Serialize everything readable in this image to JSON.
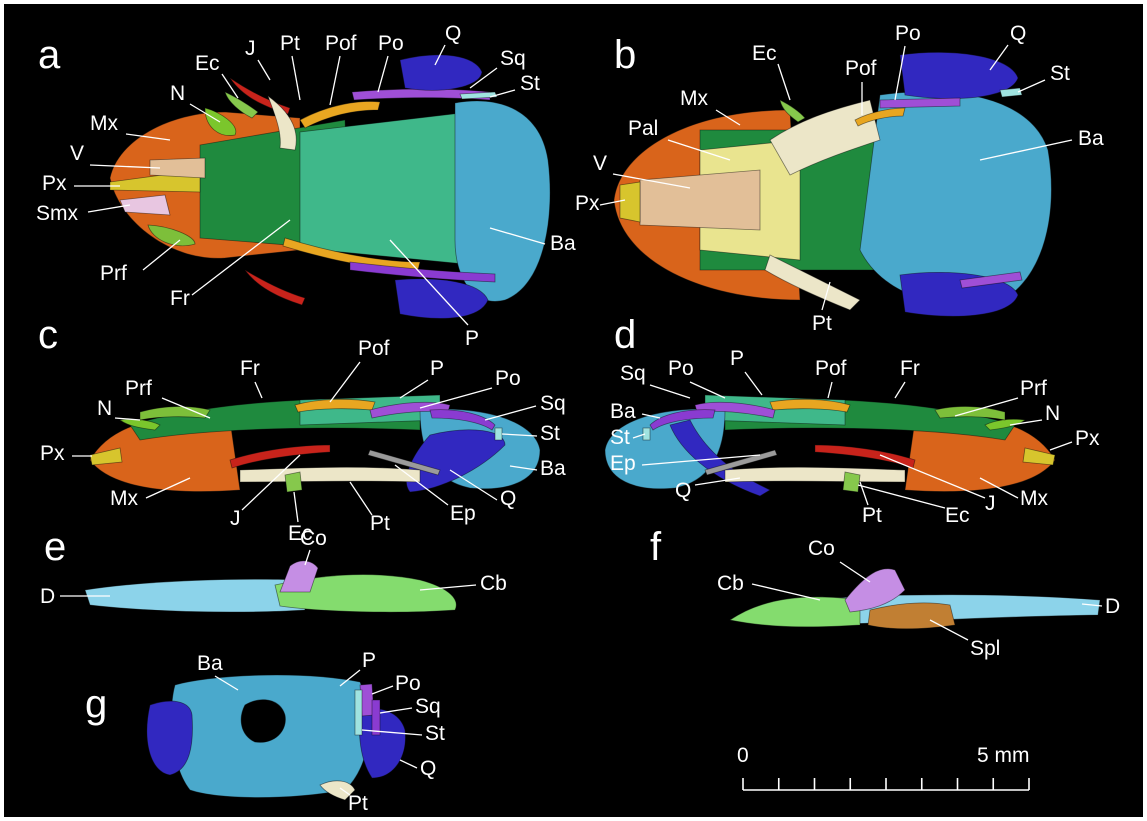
{
  "colors": {
    "background": "#000000",
    "text": "#ffffff",
    "Mx": "#d9641b",
    "Px": "#d7c52d",
    "V": "#e2bf98",
    "Smx": "#e8c6e1",
    "N": "#7bc62c",
    "Prf": "#7dbf3a",
    "Fr": "#1f8a3e",
    "Ec": "#86c84c",
    "J": "#c8231b",
    "Pt": "#ece6c8",
    "Pof": "#e8a621",
    "Po": "#9f4fd6",
    "Sq": "#8a3bd1",
    "St": "#9fe3e0",
    "P": "#3fb88a",
    "Q": "#3128c0",
    "Ba": "#4aa9cc",
    "Ep": "#9b9b9b",
    "Pal": "#e9e48f",
    "D": "#8cd3ea",
    "Cb": "#84dc6e",
    "Co": "#c58ee4",
    "Spl": "#c17f33"
  },
  "panels": [
    {
      "letter": "a",
      "labels": [
        "J",
        "Pt",
        "Pof",
        "Po",
        "Q",
        "Sq",
        "St",
        "Ec",
        "N",
        "Mx",
        "V",
        "Px",
        "Smx",
        "Prf",
        "Fr",
        "Ba",
        "P"
      ]
    },
    {
      "letter": "b",
      "labels": [
        "Ec",
        "Po",
        "Q",
        "Pof",
        "St",
        "Mx",
        "Ba",
        "Pal",
        "V",
        "Px",
        "Pt"
      ]
    },
    {
      "letter": "c",
      "labels": [
        "Pof",
        "Fr",
        "P",
        "Po",
        "Sq",
        "Prf",
        "N",
        "St",
        "Px",
        "Ba",
        "Mx",
        "Q",
        "Ep",
        "J",
        "Pt",
        "Ec"
      ]
    },
    {
      "letter": "d",
      "labels": [
        "Sq",
        "Po",
        "P",
        "Pof",
        "Fr",
        "Prf",
        "Ba",
        "N",
        "St",
        "Px",
        "Ep",
        "Q",
        "Mx",
        "J",
        "Pt",
        "Ec"
      ]
    },
    {
      "letter": "e",
      "labels": [
        "Co",
        "D",
        "Cb"
      ]
    },
    {
      "letter": "f",
      "labels": [
        "Co",
        "Cb",
        "D",
        "Spl"
      ]
    },
    {
      "letter": "g",
      "labels": [
        "Ba",
        "P",
        "Po",
        "Sq",
        "St",
        "Q",
        "Pt"
      ]
    }
  ],
  "scale_bar": {
    "start_label": "0",
    "end_label": "5 mm",
    "divisions": 8
  }
}
